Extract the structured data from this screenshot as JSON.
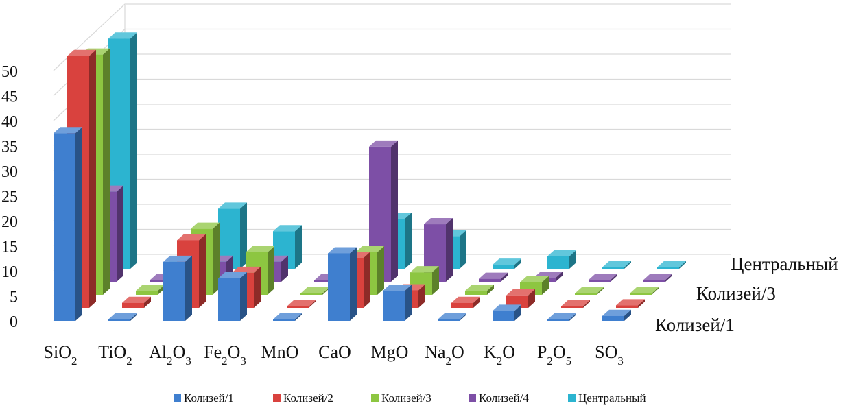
{
  "chart_data": {
    "type": "bar",
    "variant": "3d-clustered-depth",
    "title": "",
    "xlabel": "",
    "ylabel": "",
    "ylim": [
      0,
      50
    ],
    "yticks": [
      0,
      5,
      10,
      15,
      20,
      25,
      30,
      35,
      40,
      45,
      50
    ],
    "categories": [
      {
        "base": "SiO",
        "sub": "2"
      },
      {
        "base": "TiO",
        "sub": "2"
      },
      {
        "base": "Al",
        "sub": "2",
        "mid": "O",
        "sub2": "3"
      },
      {
        "base": "Fe",
        "sub": "2",
        "mid": "O",
        "sub2": "3"
      },
      {
        "base": "MnO",
        "sub": ""
      },
      {
        "base": "CaO",
        "sub": ""
      },
      {
        "base": "MgO",
        "sub": ""
      },
      {
        "base": "Na",
        "sub": "2",
        "mid": "O",
        "sub2": ""
      },
      {
        "base": "K",
        "sub": "2",
        "mid": "O",
        "sub2": ""
      },
      {
        "base": "P",
        "sub": "2",
        "mid": "O",
        "sub2": "5"
      },
      {
        "base": "SO",
        "sub": "3"
      }
    ],
    "series": [
      {
        "name": "Колизей/1",
        "color": "#3f7fcf",
        "values": [
          37.5,
          0.3,
          11.8,
          8.5,
          0.1,
          13.5,
          6.0,
          0.2,
          2.0,
          0.1,
          1.0
        ]
      },
      {
        "name": "Колизей/2",
        "color": "#d9423e",
        "values": [
          50.3,
          1.0,
          13.5,
          7.0,
          0.2,
          10.0,
          3.5,
          1.0,
          2.5,
          0.3,
          0.5
        ]
      },
      {
        "name": "Колизей/3",
        "color": "#8dc641",
        "values": [
          48.0,
          0.8,
          13.2,
          8.5,
          0.1,
          8.5,
          4.5,
          0.8,
          2.5,
          0.2,
          0.2
        ]
      },
      {
        "name": "Колизей/4",
        "color": "#7d4fa6",
        "values": [
          18.0,
          0.1,
          4.0,
          4.0,
          0.1,
          27.0,
          11.5,
          0.6,
          0.8,
          0.4,
          0.4
        ]
      },
      {
        "name": "Центральный",
        "color": "#2cb4d0",
        "values": [
          46.0,
          0.1,
          12.0,
          7.5,
          0.1,
          10.0,
          6.5,
          0.8,
          2.5,
          0.3,
          0.3
        ]
      }
    ],
    "depth_labels": [
      "Центральный",
      "Колизей/3",
      "Колизей/1"
    ],
    "legend": {
      "position": "bottom",
      "items": [
        "Колизей/1",
        "Колизей/2",
        "Колизей/3",
        "Колизей/4",
        "Центральный"
      ]
    },
    "grid": true
  }
}
